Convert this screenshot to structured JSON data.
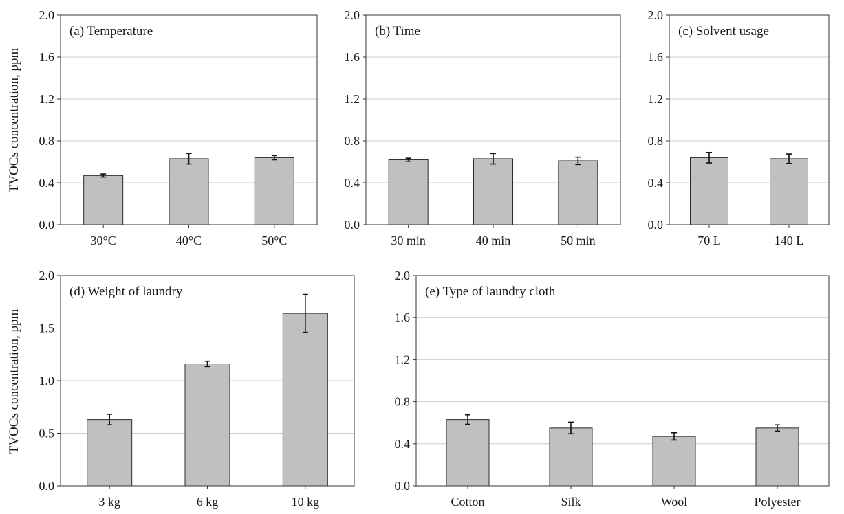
{
  "ylabel": "TVOCs concentration, ppm",
  "colors": {
    "bar_fill": "#c0c0c0",
    "bar_stroke": "#2b2b2b",
    "grid": "#cccccc",
    "axis": "#333333",
    "error": "#111111"
  },
  "chart_data": [
    {
      "id": "a",
      "type": "bar",
      "title": "(a) Temperature",
      "categories": [
        "30°C",
        "40°C",
        "50°C"
      ],
      "values": [
        0.47,
        0.63,
        0.64
      ],
      "errors": [
        0.015,
        0.05,
        0.02
      ],
      "ylim": [
        0,
        2.0
      ],
      "yticks": [
        0.0,
        0.4,
        0.8,
        1.2,
        1.6,
        2.0
      ],
      "ytick_labels": [
        "0.0",
        "0.4",
        "0.8",
        "1.2",
        "1.6",
        "2.0"
      ],
      "ylabel": "TVOCs concentration, ppm",
      "grid": true
    },
    {
      "id": "b",
      "type": "bar",
      "title": "(b) Time",
      "categories": [
        "30 min",
        "40 min",
        "50 min"
      ],
      "values": [
        0.62,
        0.63,
        0.61
      ],
      "errors": [
        0.015,
        0.05,
        0.035
      ],
      "ylim": [
        0,
        2.0
      ],
      "yticks": [
        0.0,
        0.4,
        0.8,
        1.2,
        1.6,
        2.0
      ],
      "ytick_labels": [
        "0.0",
        "0.4",
        "0.8",
        "1.2",
        "1.6",
        "2.0"
      ],
      "ylabel": "",
      "grid": true
    },
    {
      "id": "c",
      "type": "bar",
      "title": "(c) Solvent usage",
      "categories": [
        "70 L",
        "140 L"
      ],
      "values": [
        0.64,
        0.63
      ],
      "errors": [
        0.05,
        0.045
      ],
      "ylim": [
        0,
        2.0
      ],
      "yticks": [
        0.0,
        0.4,
        0.8,
        1.2,
        1.6,
        2.0
      ],
      "ytick_labels": [
        "0.0",
        "0.4",
        "0.8",
        "1.2",
        "1.6",
        "2.0"
      ],
      "ylabel": "",
      "grid": true
    },
    {
      "id": "d",
      "type": "bar",
      "title": "(d) Weight of laundry",
      "categories": [
        "3 kg",
        "6 kg",
        "10 kg"
      ],
      "values": [
        0.63,
        1.16,
        1.64
      ],
      "errors": [
        0.05,
        0.025,
        0.18
      ],
      "ylim": [
        0,
        2.0
      ],
      "yticks": [
        0.0,
        0.5,
        1.0,
        1.5,
        2.0
      ],
      "ytick_labels": [
        "0.0",
        "0.5",
        "1.0",
        "1.5",
        "2.0"
      ],
      "ylabel": "TVOCs concentration, ppm",
      "grid": true
    },
    {
      "id": "e",
      "type": "bar",
      "title": "(e) Type of laundry cloth",
      "categories": [
        "Cotton",
        "Silk",
        "Wool",
        "Polyester"
      ],
      "values": [
        0.63,
        0.55,
        0.47,
        0.55
      ],
      "errors": [
        0.045,
        0.055,
        0.035,
        0.03
      ],
      "ylim": [
        0,
        2.0
      ],
      "yticks": [
        0.0,
        0.4,
        0.8,
        1.2,
        1.6,
        2.0
      ],
      "ytick_labels": [
        "0.0",
        "0.4",
        "0.8",
        "1.2",
        "1.6",
        "2.0"
      ],
      "ylabel": "",
      "grid": true
    }
  ]
}
